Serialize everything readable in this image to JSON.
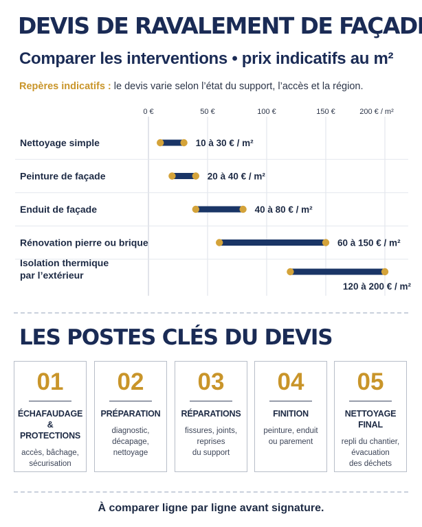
{
  "header": {
    "title": "DEVIS DE RAVALEMENT DE FAÇADE",
    "subtitle": "Comparer les interventions • prix indicatifs au m²",
    "note_label": "Repères indicatifs :",
    "note_text": " le devis varie selon l’état du support, l’accès et la région."
  },
  "chart_data": {
    "type": "range-bar",
    "x_ticks": [
      {
        "value": 0,
        "label": "0 €"
      },
      {
        "value": 50,
        "label": "50 €"
      },
      {
        "value": 100,
        "label": "100 €"
      },
      {
        "value": 150,
        "label": "150 €"
      },
      {
        "value": 200,
        "label": "200 € / m²"
      }
    ],
    "xlim": [
      0,
      200
    ],
    "grid": true,
    "colors": {
      "bar": "#1a3566",
      "endpoint": "#d4a33a",
      "grid": "#dde1e8"
    },
    "rows": [
      {
        "category": "Nettoyage simple",
        "min": 10,
        "max": 30,
        "label": "10 à 30 € / m²"
      },
      {
        "category": "Peinture de façade",
        "min": 20,
        "max": 40,
        "label": "20 à 40 € / m²"
      },
      {
        "category": "Enduit de façade",
        "min": 40,
        "max": 80,
        "label": "40 à 80 € / m²"
      },
      {
        "category": "Rénovation pierre ou brique",
        "min": 60,
        "max": 150,
        "label": "60 à 150 € / m²"
      },
      {
        "category": "Isolation thermique\npar l’extérieur",
        "min": 120,
        "max": 200,
        "label": "120 à 200 € / m²"
      }
    ]
  },
  "section": {
    "title": "LES POSTES CLÉS DU DEVIS",
    "cards": [
      {
        "num": "01",
        "title": "ÉCHAFAUDAGE\n& PROTECTIONS",
        "desc": "accès, bâchage,\nsécurisation"
      },
      {
        "num": "02",
        "title": "PRÉPARATION",
        "desc": "diagnostic,\ndécapage,\nnettoyage"
      },
      {
        "num": "03",
        "title": "RÉPARATIONS",
        "desc": "fissures, joints,\nreprises\ndu support"
      },
      {
        "num": "04",
        "title": "FINITION",
        "desc": "peinture, enduit\nou parement"
      },
      {
        "num": "05",
        "title": "NETTOYAGE FINAL",
        "desc": "repli du chantier,\névacuation\ndes déchets"
      }
    ]
  },
  "footer": {
    "text": "À comparer ligne par ligne avant signature."
  }
}
